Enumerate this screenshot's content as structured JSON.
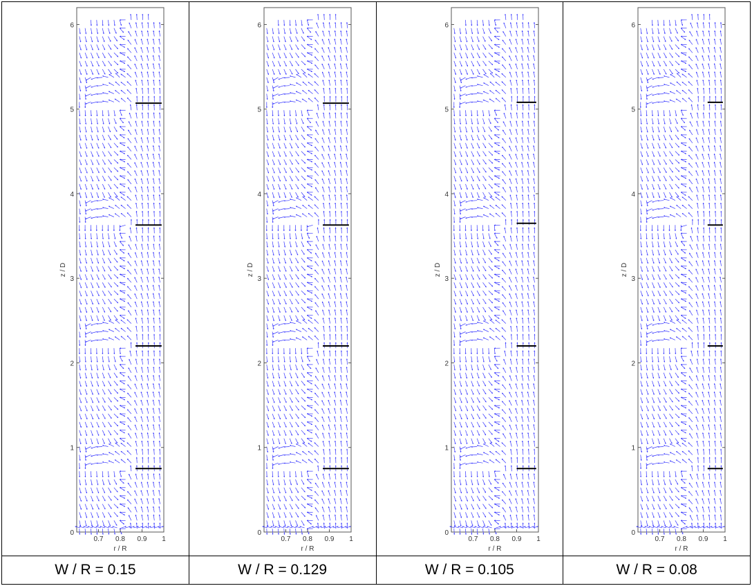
{
  "panels": [
    {
      "caption": "W / R = 0.15"
    },
    {
      "caption": "W / R = 0.129"
    },
    {
      "caption": "W / R = 0.105"
    },
    {
      "caption": "W / R = 0.08"
    }
  ],
  "chart_data": [
    {
      "type": "quiver",
      "xlabel": "r / R",
      "ylabel": "z / D",
      "xlim": [
        0.6,
        1.0
      ],
      "ylim": [
        0,
        6.2
      ],
      "xticks": [
        "0.7",
        "0.8",
        "0.9",
        "1"
      ],
      "xtick_values": [
        0.7,
        0.8,
        0.9,
        1.0
      ],
      "yticks": [
        "0",
        "1",
        "2",
        "3",
        "4",
        "5",
        "6"
      ],
      "ytick_values": [
        0,
        1,
        2,
        3,
        4,
        5,
        6
      ],
      "baffle_z": [
        0.75,
        2.2,
        3.63,
        5.07
      ],
      "baffle_r": [
        0.87,
        0.99
      ],
      "vector_color": "#3333ff",
      "grid": false
    },
    {
      "type": "quiver",
      "xlabel": "r / R",
      "ylabel": "z / D",
      "xlim": [
        0.6,
        1.0
      ],
      "ylim": [
        0,
        6.2
      ],
      "xticks": [
        "0.7",
        "0.8",
        "0.9",
        "1"
      ],
      "xtick_values": [
        0.7,
        0.8,
        0.9,
        1.0
      ],
      "yticks": [
        "0",
        "1",
        "2",
        "3",
        "4",
        "5",
        "6"
      ],
      "ytick_values": [
        0,
        1,
        2,
        3,
        4,
        5,
        6
      ],
      "baffle_z": [
        0.75,
        2.2,
        3.63,
        5.07
      ],
      "baffle_r": [
        0.87,
        0.99
      ],
      "vector_color": "#3333ff",
      "grid": false
    },
    {
      "type": "quiver",
      "xlabel": "r / R",
      "ylabel": "z / D",
      "xlim": [
        0.6,
        1.0
      ],
      "ylim": [
        0,
        6.2
      ],
      "xticks": [
        "0.7",
        "0.8",
        "0.9",
        "1"
      ],
      "xtick_values": [
        0.7,
        0.8,
        0.9,
        1.0
      ],
      "yticks": [
        "0",
        "1",
        "2",
        "3",
        "4",
        "5",
        "6"
      ],
      "ytick_values": [
        0,
        1,
        2,
        3,
        4,
        5,
        6
      ],
      "baffle_z": [
        0.75,
        2.2,
        3.65,
        5.08
      ],
      "baffle_r": [
        0.9,
        0.99
      ],
      "vector_color": "#3333ff",
      "grid": false
    },
    {
      "type": "quiver",
      "xlabel": "r / R",
      "ylabel": "z / D",
      "xlim": [
        0.6,
        1.0
      ],
      "ylim": [
        0,
        6.2
      ],
      "xticks": [
        "0.7",
        "0.8",
        "0.9",
        "1"
      ],
      "xtick_values": [
        0.7,
        0.8,
        0.9,
        1.0
      ],
      "yticks": [
        "0",
        "1",
        "2",
        "3",
        "4",
        "5",
        "6"
      ],
      "ytick_values": [
        0,
        1,
        2,
        3,
        4,
        5,
        6
      ],
      "baffle_z": [
        0.75,
        2.2,
        3.63,
        5.08
      ],
      "baffle_r": [
        0.92,
        0.99
      ],
      "vector_color": "#3333ff",
      "grid": false
    }
  ]
}
